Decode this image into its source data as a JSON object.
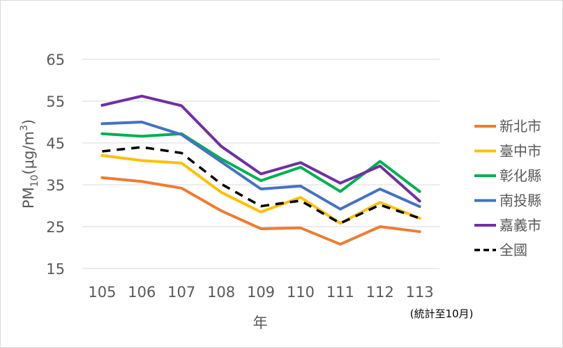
{
  "chart_data": {
    "type": "line",
    "x": [
      "105",
      "106",
      "107",
      "108",
      "109",
      "110",
      "111",
      "112",
      "113"
    ],
    "x_note": "(統計至10月)",
    "xlabel": "年",
    "ylabel": "PM10(μg/m3)",
    "ylabel_parts": {
      "main": "PM",
      "sub": "10",
      "unit_open": "(μg/m",
      "sup": "3",
      "unit_close": ")"
    },
    "ylim": [
      15,
      65
    ],
    "yticks": [
      15,
      25,
      35,
      45,
      55,
      65
    ],
    "grid": true,
    "legend_position": "right",
    "series": [
      {
        "name": "新北市",
        "color": "#ed7d31",
        "dash": false,
        "values": [
          36.7,
          35.8,
          34.2,
          28.8,
          24.5,
          24.7,
          20.8,
          25.0,
          23.8
        ]
      },
      {
        "name": "臺中市",
        "color": "#ffc000",
        "dash": false,
        "values": [
          42.0,
          40.8,
          40.2,
          33.2,
          28.5,
          32.0,
          25.8,
          30.8,
          27.0
        ]
      },
      {
        "name": "彰化縣",
        "color": "#00b050",
        "dash": false,
        "values": [
          47.2,
          46.6,
          47.2,
          41.2,
          36.0,
          39.2,
          33.4,
          40.6,
          33.4
        ]
      },
      {
        "name": "南投縣",
        "color": "#4472c4",
        "dash": false,
        "values": [
          49.6,
          50.0,
          47.0,
          40.5,
          34.0,
          34.7,
          29.2,
          34.0,
          29.8
        ]
      },
      {
        "name": "嘉義市",
        "color": "#7030a0",
        "dash": false,
        "values": [
          54.0,
          56.2,
          53.9,
          44.2,
          37.6,
          40.3,
          35.4,
          39.5,
          31.1
        ]
      },
      {
        "name": "全國",
        "color": "#000000",
        "dash": true,
        "values": [
          43.0,
          44.0,
          42.6,
          35.2,
          29.9,
          31.2,
          25.8,
          30.2,
          27.0
        ]
      }
    ]
  }
}
